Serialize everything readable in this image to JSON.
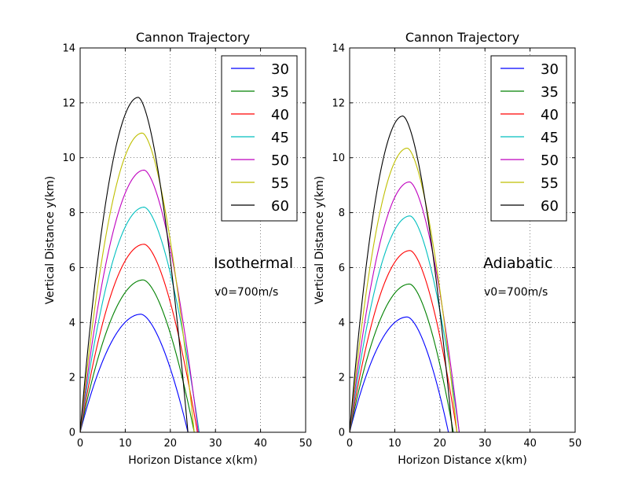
{
  "chart_data": [
    {
      "type": "line",
      "title": "Cannon Trajectory",
      "xlabel": "Horizon Distance x(km)",
      "ylabel": "Vertical Distance y(km)",
      "xlim": [
        0,
        50
      ],
      "ylim": [
        0,
        14
      ],
      "x_ticks": [
        "0",
        "10",
        "20",
        "30",
        "40",
        "50"
      ],
      "y_ticks": [
        "0",
        "2",
        "4",
        "6",
        "8",
        "10",
        "12",
        "14"
      ],
      "grid": true,
      "legend_position": "top-right",
      "annotation_model": "Isothermal",
      "annotation_velocity": "v0=700m/s",
      "series": [
        {
          "name": "30",
          "color": "#0000ff",
          "range": 23.9,
          "apex_x": 13.5,
          "apex_y": 4.3
        },
        {
          "name": "35",
          "color": "#008000",
          "range": 25.3,
          "apex_x": 14.0,
          "apex_y": 5.55
        },
        {
          "name": "40",
          "color": "#ff0000",
          "range": 26.0,
          "apex_x": 14.2,
          "apex_y": 6.85
        },
        {
          "name": "45",
          "color": "#00bfbf",
          "range": 26.4,
          "apex_x": 14.2,
          "apex_y": 8.2
        },
        {
          "name": "50",
          "color": "#bf00bf",
          "range": 26.2,
          "apex_x": 14.2,
          "apex_y": 9.55
        },
        {
          "name": "55",
          "color": "#bfbf00",
          "range": 25.3,
          "apex_x": 13.8,
          "apex_y": 10.9
        },
        {
          "name": "60",
          "color": "#000000",
          "range": 23.9,
          "apex_x": 12.9,
          "apex_y": 12.2
        }
      ]
    },
    {
      "type": "line",
      "title": "Cannon Trajectory",
      "xlabel": "Horizon Distance x(km)",
      "ylabel": "Vertical Distance y(km)",
      "xlim": [
        0,
        50
      ],
      "ylim": [
        0,
        14
      ],
      "x_ticks": [
        "0",
        "10",
        "20",
        "30",
        "40",
        "50"
      ],
      "y_ticks": [
        "0",
        "2",
        "4",
        "6",
        "8",
        "10",
        "12",
        "14"
      ],
      "grid": true,
      "legend_position": "top-right",
      "annotation_model": "Adiabatic",
      "annotation_velocity": "v0=700m/s",
      "series": [
        {
          "name": "30",
          "color": "#0000ff",
          "range": 21.9,
          "apex_x": 12.8,
          "apex_y": 4.2
        },
        {
          "name": "35",
          "color": "#008000",
          "range": 23.0,
          "apex_x": 13.3,
          "apex_y": 5.4
        },
        {
          "name": "40",
          "color": "#ff0000",
          "range": 23.8,
          "apex_x": 13.4,
          "apex_y": 6.62
        },
        {
          "name": "45",
          "color": "#00bfbf",
          "range": 24.3,
          "apex_x": 13.4,
          "apex_y": 7.88
        },
        {
          "name": "50",
          "color": "#bf00bf",
          "range": 24.3,
          "apex_x": 13.3,
          "apex_y": 9.12
        },
        {
          "name": "55",
          "color": "#bfbf00",
          "range": 23.8,
          "apex_x": 12.8,
          "apex_y": 10.35
        },
        {
          "name": "60",
          "color": "#000000",
          "range": 22.8,
          "apex_x": 11.8,
          "apex_y": 11.52
        }
      ]
    }
  ]
}
